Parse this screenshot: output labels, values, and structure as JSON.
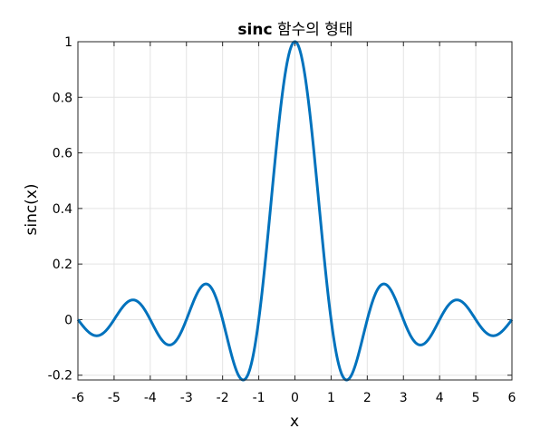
{
  "chart_data": {
    "type": "line",
    "title_bold": "sinc",
    "title_rest": " 함수의 형태",
    "xlabel": "x",
    "ylabel": "sinc(x)",
    "xlim": [
      -6,
      6
    ],
    "ylim": [
      -0.2172,
      1
    ],
    "x_ticks": [
      -6,
      -5,
      -4,
      -3,
      -2,
      -1,
      0,
      1,
      2,
      3,
      4,
      5,
      6
    ],
    "x_tick_labels": [
      "-6",
      "-5",
      "-4",
      "-3",
      "-2",
      "-1",
      "0",
      "1",
      "2",
      "3",
      "4",
      "5",
      "6"
    ],
    "y_ticks": [
      -0.2,
      0,
      0.2,
      0.4,
      0.6,
      0.8,
      1
    ],
    "y_tick_labels": [
      "-0.2",
      "0",
      "0.2",
      "0.4",
      "0.6",
      "0.8",
      "1"
    ],
    "grid": true,
    "series": [
      {
        "function": "sin(pi*x)/(pi*x)",
        "x_range": [
          -6,
          6
        ],
        "color": "#0072BD"
      }
    ]
  }
}
